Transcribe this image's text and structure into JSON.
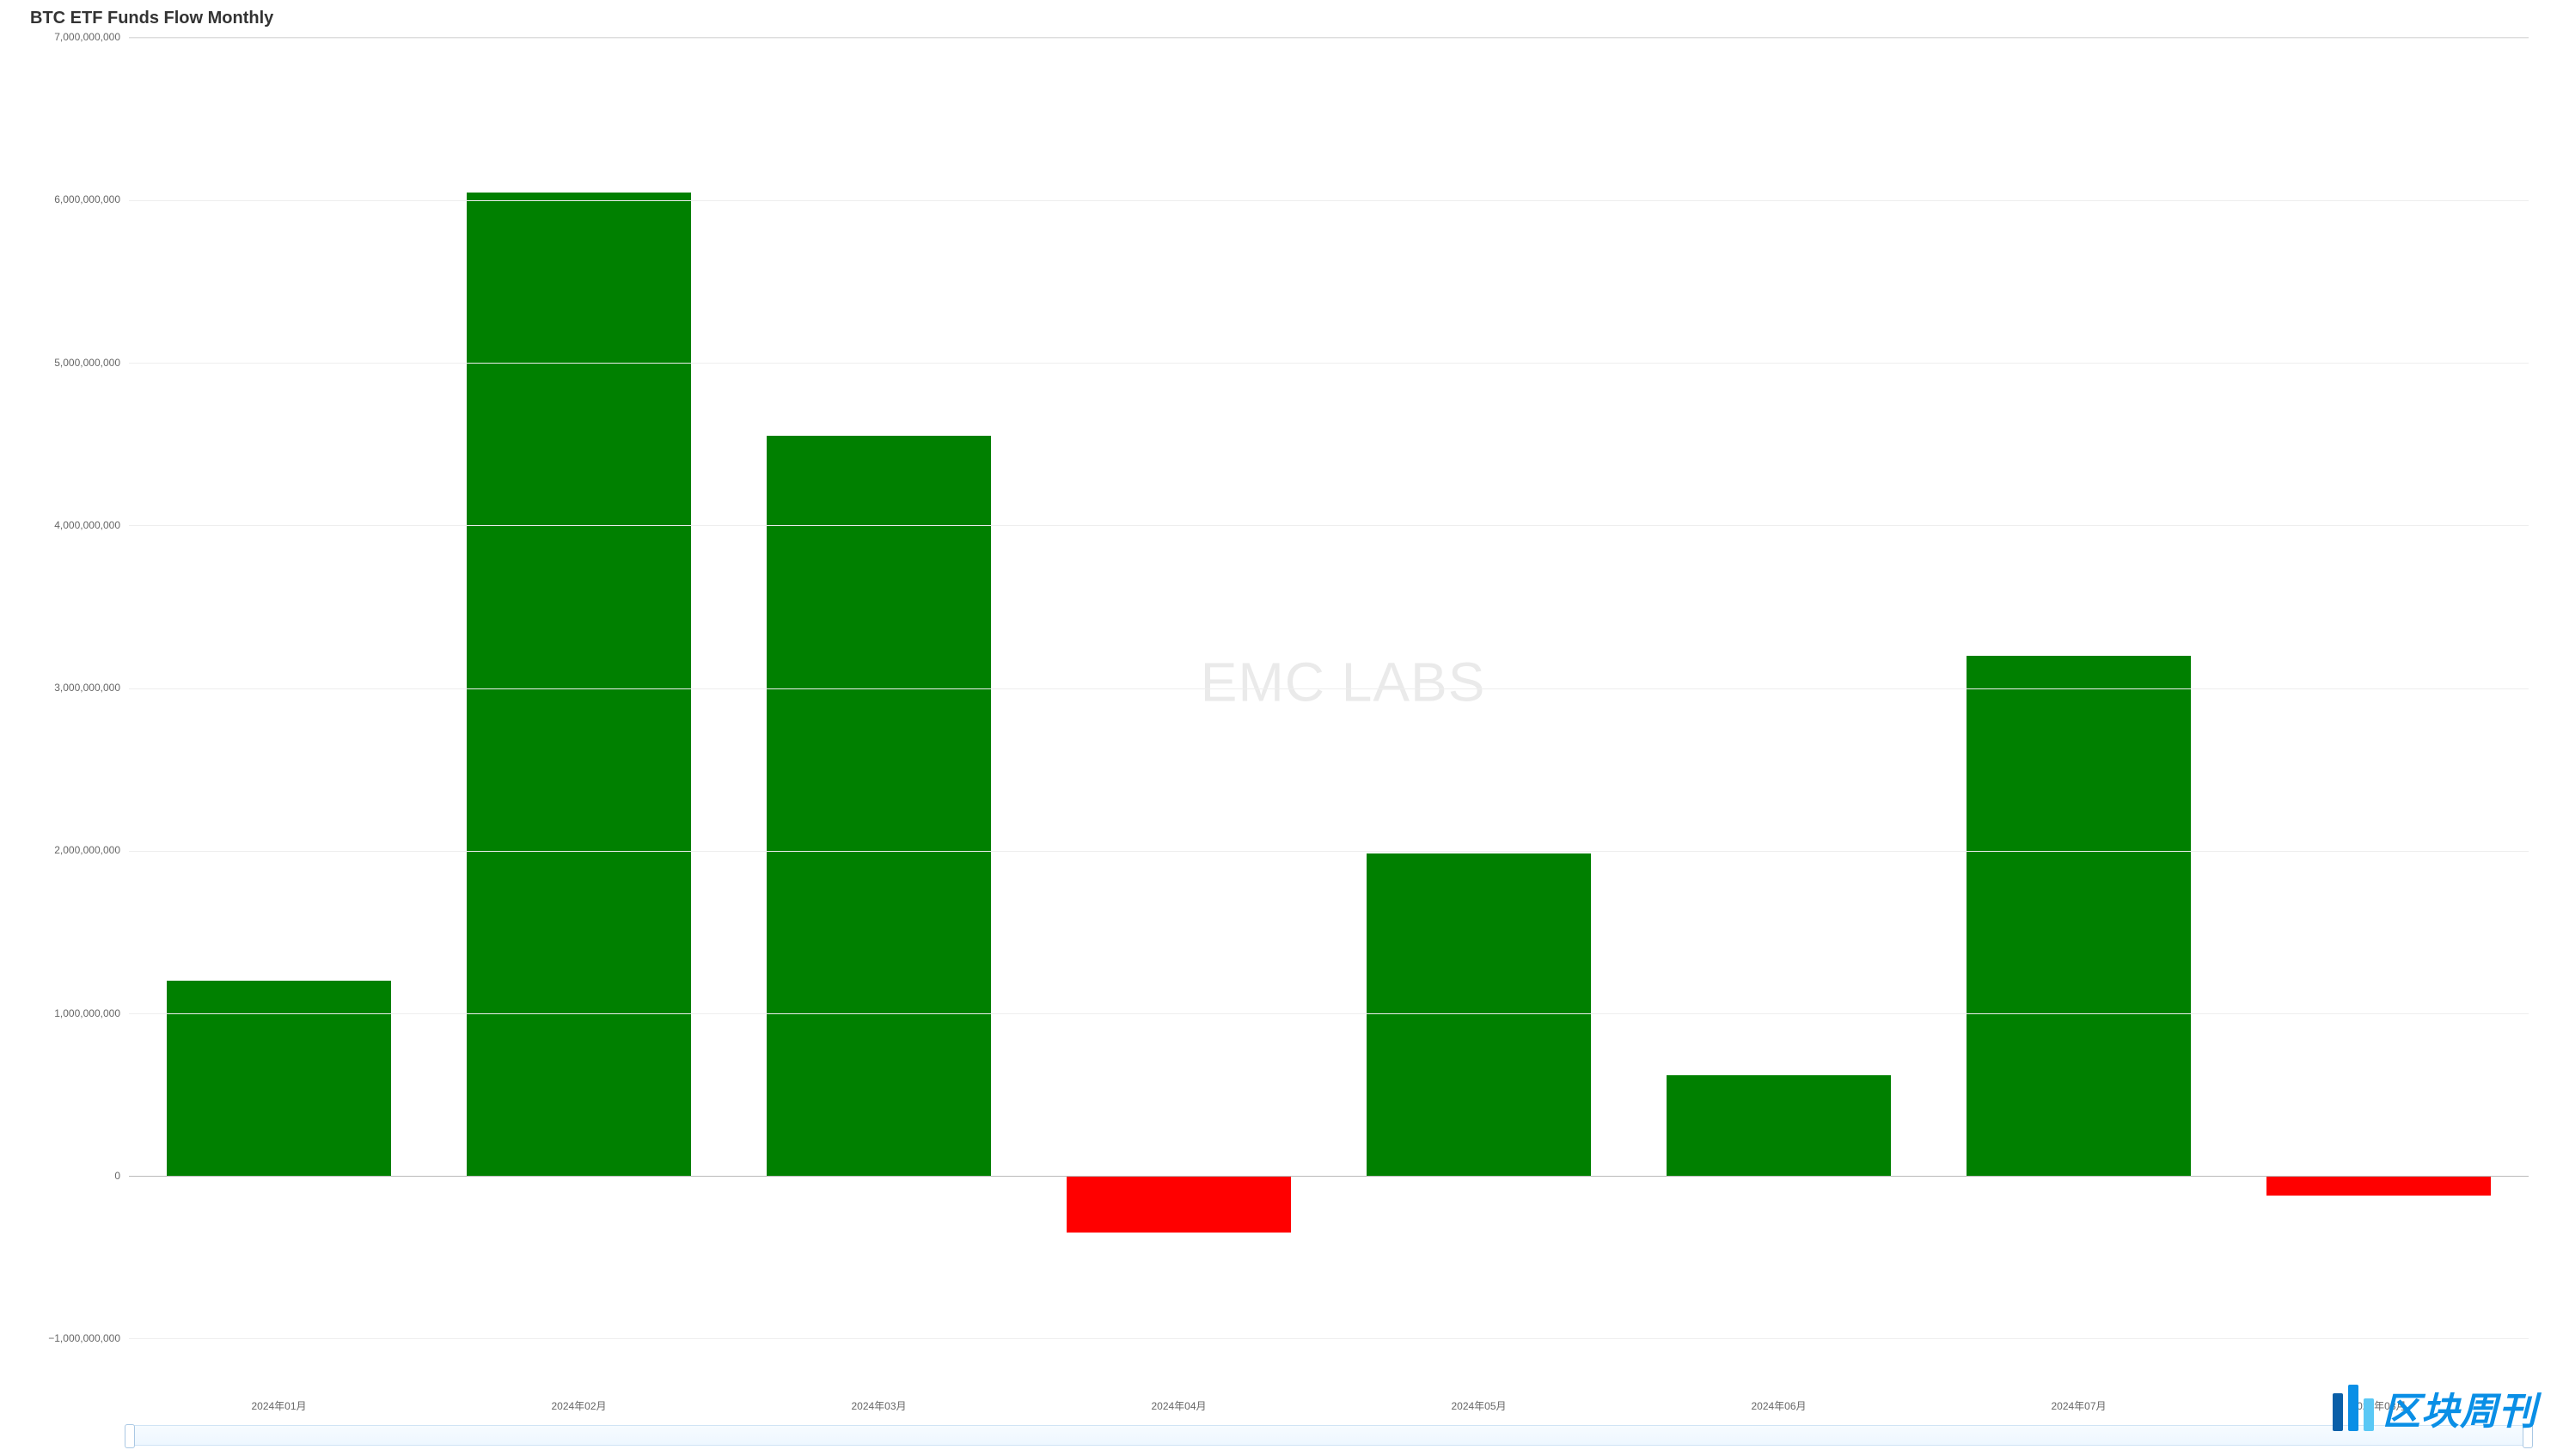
{
  "chart": {
    "type": "bar",
    "title": "BTC ETF Funds Flow Monthly",
    "title_fontsize": 20,
    "title_color": "#333333",
    "background_color": "#ffffff",
    "grid_color": "#eeeeee",
    "axis_line_color": "#dddddd",
    "zero_line_color": "#bbbbbb",
    "tick_label_color": "#666666",
    "tick_label_fontsize": 12,
    "ylim_min": -1000000000,
    "ylim_max": 7000000000,
    "ytick_step": 1000000000,
    "yticks": [
      {
        "value": 7000000000,
        "label": "7,000,000,000"
      },
      {
        "value": 6000000000,
        "label": "6,000,000,000"
      },
      {
        "value": 5000000000,
        "label": "5,000,000,000"
      },
      {
        "value": 4000000000,
        "label": "4,000,000,000"
      },
      {
        "value": 3000000000,
        "label": "3,000,000,000"
      },
      {
        "value": 2000000000,
        "label": "2,000,000,000"
      },
      {
        "value": 1000000000,
        "label": "1,000,000,000"
      },
      {
        "value": 0,
        "label": "0"
      },
      {
        "value": -1000000000,
        "label": "−1,000,000,000"
      }
    ],
    "categories": [
      "2024年01月",
      "2024年02月",
      "2024年03月",
      "2024年04月",
      "2024年05月",
      "2024年06月",
      "2024年07月",
      "2024年08月"
    ],
    "values": [
      1200000000,
      6050000000,
      4550000000,
      -350000000,
      1980000000,
      620000000,
      3200000000,
      -120000000
    ],
    "positive_color": "#008000",
    "negative_color": "#ff0000",
    "bar_width_ratio": 0.75,
    "watermark_text": "EMC LABS",
    "watermark_color": "#000000",
    "watermark_opacity": 0.08,
    "watermark_fontsize": 64
  },
  "brush": {
    "track_bg_top": "#f6fbff",
    "track_bg_bottom": "#eef7ff",
    "track_border": "#d0e4f5",
    "handle_bg": "#ffffff",
    "handle_border": "#aac8e4"
  },
  "brand": {
    "text": "区块周刊",
    "text_color": "#0a8fe6",
    "bar_colors": [
      "#0a5fa8",
      "#0a8fe6",
      "#5ac8f5"
    ],
    "bar_heights": [
      44,
      54,
      38
    ]
  }
}
